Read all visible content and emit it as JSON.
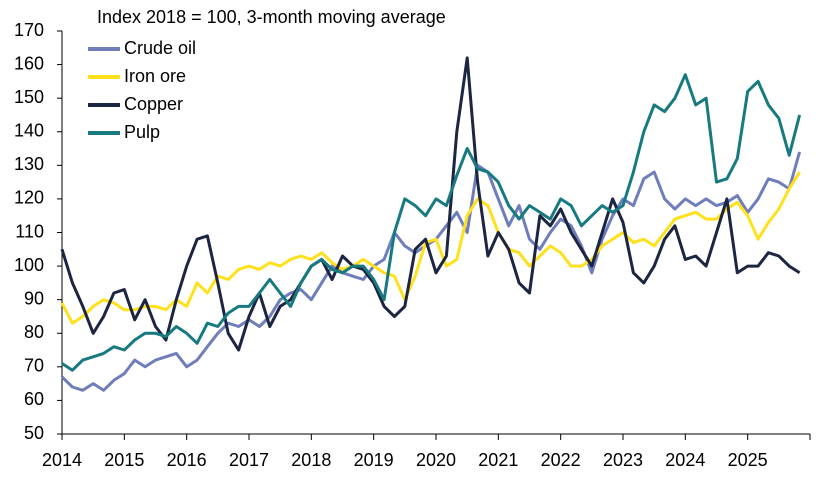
{
  "chart_data": {
    "type": "line",
    "title": "Index 2018 = 100, 3-month moving average",
    "categories": [
      "2014",
      null,
      null,
      null,
      null,
      null,
      "2015",
      null,
      null,
      null,
      null,
      null,
      "2016",
      null,
      null,
      null,
      null,
      null,
      "2017",
      null,
      null,
      null,
      null,
      null,
      "2018",
      null,
      null,
      null,
      null,
      null,
      "2019",
      null,
      null,
      null,
      null,
      null,
      "2020",
      null,
      null,
      null,
      null,
      null,
      "2021",
      null,
      null,
      null,
      null,
      null,
      "2022",
      null,
      null,
      null,
      null,
      null,
      "2023",
      null,
      null,
      null,
      null,
      null,
      "2024",
      null,
      null,
      null,
      null,
      null,
      "2025",
      null,
      null,
      null,
      null,
      null
    ],
    "series": [
      {
        "name": "Crude oil",
        "color": "#6f7dbd",
        "values": [
          67,
          64,
          63,
          65,
          63,
          66,
          68,
          72,
          70,
          72,
          73,
          74,
          70,
          72,
          76,
          80,
          83,
          82,
          84,
          82,
          85,
          90,
          92,
          93,
          90,
          95,
          100,
          98,
          97,
          96,
          100,
          102,
          110,
          106,
          104,
          106,
          108,
          112,
          116,
          110,
          130,
          128,
          120,
          112,
          118,
          108,
          105,
          110,
          114,
          112,
          106,
          98,
          108,
          115,
          120,
          118,
          126,
          128,
          120,
          117,
          120,
          118,
          120,
          118,
          119,
          121,
          116,
          120,
          126,
          125,
          123,
          134
        ]
      },
      {
        "name": "Iron ore",
        "color": "#ffe01b",
        "values": [
          89,
          83,
          85,
          88,
          90,
          89,
          87,
          87,
          88,
          88,
          87,
          90,
          88,
          95,
          92,
          97,
          96,
          99,
          100,
          99,
          101,
          100,
          102,
          103,
          102,
          104,
          101,
          99,
          100,
          102,
          100,
          98,
          97,
          90,
          97,
          107,
          108,
          100,
          102,
          115,
          120,
          118,
          110,
          105,
          104,
          100,
          103,
          106,
          104,
          100,
          100,
          102,
          106,
          108,
          110,
          107,
          108,
          106,
          110,
          114,
          115,
          116,
          114,
          114,
          117,
          119,
          115,
          108,
          113,
          117,
          123,
          128
        ]
      },
      {
        "name": "Copper",
        "color": "#1c2541",
        "values": [
          105,
          95,
          88,
          80,
          85,
          92,
          93,
          84,
          90,
          82,
          78,
          90,
          100,
          108,
          109,
          95,
          80,
          75,
          85,
          92,
          82,
          88,
          90,
          95,
          100,
          102,
          96,
          103,
          100,
          99,
          95,
          88,
          85,
          88,
          105,
          108,
          98,
          103,
          140,
          162,
          125,
          103,
          110,
          105,
          95,
          92,
          115,
          112,
          117,
          110,
          105,
          100,
          110,
          120,
          113,
          98,
          95,
          100,
          108,
          112,
          102,
          103,
          100,
          110,
          120,
          98,
          100,
          100,
          104,
          103,
          100,
          98
        ]
      },
      {
        "name": "Pulp",
        "color": "#167a80",
        "values": [
          71,
          69,
          72,
          73,
          74,
          76,
          75,
          78,
          80,
          80,
          79,
          82,
          80,
          77,
          83,
          82,
          86,
          88,
          88,
          92,
          96,
          92,
          88,
          95,
          100,
          102,
          99,
          98,
          100,
          100,
          96,
          90,
          110,
          120,
          118,
          115,
          120,
          118,
          127,
          135,
          129,
          128,
          125,
          118,
          114,
          118,
          116,
          114,
          120,
          118,
          112,
          115,
          118,
          116,
          118,
          128,
          140,
          148,
          146,
          150,
          157,
          148,
          150,
          125,
          126,
          132,
          152,
          155,
          148,
          144,
          133,
          145
        ]
      }
    ],
    "ylim": [
      50,
      170
    ],
    "yticks": [
      50,
      60,
      70,
      80,
      90,
      100,
      110,
      120,
      130,
      140,
      150,
      160,
      170
    ],
    "grid": false,
    "legend": "upper-left"
  }
}
